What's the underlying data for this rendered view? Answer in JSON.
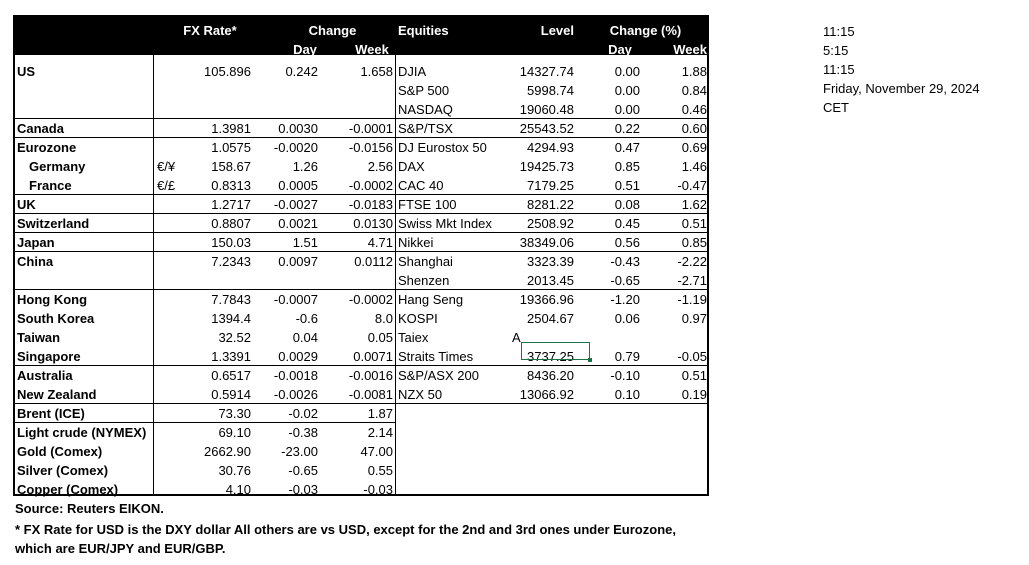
{
  "colors": {
    "header_bg": "#000000",
    "header_text": "#ffffff",
    "selection": "#1e7145"
  },
  "header": {
    "fx_rate": "FX Rate*",
    "change": "Change",
    "day": "Day",
    "week": "Week",
    "equities": "Equities",
    "level": "Level",
    "change_pct": "Change (%)",
    "eq_day": "Day",
    "eq_week": "Week"
  },
  "fx_rows": [
    {
      "country": "US",
      "cur": "",
      "rate": "105.896",
      "day": "0.242",
      "week": "1.658"
    },
    {
      "country": "",
      "cur": "",
      "rate": "",
      "day": "",
      "week": ""
    },
    {
      "country": "",
      "cur": "",
      "rate": "",
      "day": "",
      "week": ""
    },
    {
      "country": "Canada",
      "cur": "",
      "rate": "1.3981",
      "day": "0.0030",
      "week": "-0.0001"
    },
    {
      "country": "Eurozone",
      "cur": "",
      "rate": "1.0575",
      "day": "-0.0020",
      "week": "-0.0156"
    },
    {
      "country": "Germany",
      "cur": "€/¥",
      "rate": "158.67",
      "day": "1.26",
      "week": "2.56"
    },
    {
      "country": "France",
      "cur": "€/£",
      "rate": "0.8313",
      "day": "0.0005",
      "week": "-0.0002"
    },
    {
      "country": "UK",
      "cur": "",
      "rate": "1.2717",
      "day": "-0.0027",
      "week": "-0.0183"
    },
    {
      "country": "Switzerland",
      "cur": "",
      "rate": "0.8807",
      "day": "0.0021",
      "week": "0.0130"
    },
    {
      "country": "Japan",
      "cur": "",
      "rate": "150.03",
      "day": "1.51",
      "week": "4.71"
    },
    {
      "country": "China",
      "cur": "",
      "rate": "7.2343",
      "day": "0.0097",
      "week": "0.0112"
    },
    {
      "country": "",
      "cur": "",
      "rate": "",
      "day": "",
      "week": ""
    },
    {
      "country": "Hong Kong",
      "cur": "",
      "rate": "7.7843",
      "day": "-0.0007",
      "week": "-0.0002"
    },
    {
      "country": "South Korea",
      "cur": "",
      "rate": "1394.4",
      "day": "-0.6",
      "week": "8.0"
    },
    {
      "country": "Taiwan",
      "cur": "",
      "rate": "32.52",
      "day": "0.04",
      "week": "0.05"
    },
    {
      "country": "Singapore",
      "cur": "",
      "rate": "1.3391",
      "day": "0.0029",
      "week": "0.0071"
    },
    {
      "country": "Australia",
      "cur": "",
      "rate": "0.6517",
      "day": "-0.0018",
      "week": "-0.0016"
    },
    {
      "country": "New Zealand",
      "cur": "",
      "rate": "0.5914",
      "day": "-0.0026",
      "week": "-0.0081"
    },
    {
      "country": "Brent (ICE)",
      "cur": "",
      "rate": "73.30",
      "day": "-0.02",
      "week": "1.87"
    },
    {
      "country": "Light crude (NYMEX)",
      "cur": "",
      "rate": "69.10",
      "day": "-0.38",
      "week": "2.14"
    },
    {
      "country": "Gold (Comex)",
      "cur": "",
      "rate": "2662.90",
      "day": "-23.00",
      "week": "47.00"
    },
    {
      "country": "Silver (Comex)",
      "cur": "",
      "rate": "30.76",
      "day": "-0.65",
      "week": "0.55"
    },
    {
      "country": "Copper (Comex)",
      "cur": "",
      "rate": "4.10",
      "day": "-0.03",
      "week": "-0.03"
    }
  ],
  "eq_rows": [
    {
      "name": "DJIA",
      "level": "14327.74",
      "day": "0.00",
      "week": "1.88"
    },
    {
      "name": "S&P 500",
      "level": "5998.74",
      "day": "0.00",
      "week": "0.84"
    },
    {
      "name": "NASDAQ",
      "level": "19060.48",
      "day": "0.00",
      "week": "0.46"
    },
    {
      "name": "S&P/TSX",
      "level": "25543.52",
      "day": "0.22",
      "week": "0.60"
    },
    {
      "name": "DJ Eurostox 50",
      "level": "4294.93",
      "day": "0.47",
      "week": "0.69"
    },
    {
      "name": "DAX",
      "level": "19425.73",
      "day": "0.85",
      "week": "1.46"
    },
    {
      "name": "CAC 40",
      "level": "7179.25",
      "day": "0.51",
      "week": "-0.47"
    },
    {
      "name": "FTSE 100",
      "level": "8281.22",
      "day": "0.08",
      "week": "1.62"
    },
    {
      "name": "Swiss Mkt Index",
      "level": "2508.92",
      "day": "0.45",
      "week": "0.51"
    },
    {
      "name": "Nikkei",
      "level": "38349.06",
      "day": "0.56",
      "week": "0.85"
    },
    {
      "name": "Shanghai",
      "level": "3323.39",
      "day": "-0.43",
      "week": "-2.22"
    },
    {
      "name": "Shenzen",
      "level": "2013.45",
      "day": "-0.65",
      "week": "-2.71"
    },
    {
      "name": "Hang Seng",
      "level": "19366.96",
      "day": "-1.20",
      "week": "-1.19"
    },
    {
      "name": "KOSPI",
      "level": "2504.67",
      "day": "0.06",
      "week": "0.97"
    },
    {
      "name": "Taiex",
      "level": "A",
      "day": "",
      "week": ""
    },
    {
      "name": "Straits Times",
      "level": "3737.25",
      "day": "0.79",
      "week": "-0.05"
    },
    {
      "name": "S&P/ASX  200",
      "level": "8436.20",
      "day": "-0.10",
      "week": "0.51"
    },
    {
      "name": "NZX 50",
      "level": "13066.92",
      "day": "0.10",
      "week": "0.19"
    }
  ],
  "side": [
    "11:15",
    "5:15",
    "11:15",
    "Friday, November 29, 2024",
    "CET"
  ],
  "footer": {
    "source": "Source:  Reuters EIKON.",
    "note1": "* FX Rate for USD is the DXY dollar  All others are vs USD, except for the 2nd and 3rd ones under Eurozone,",
    "note2": " which are EUR/JPY and EUR/GBP."
  }
}
